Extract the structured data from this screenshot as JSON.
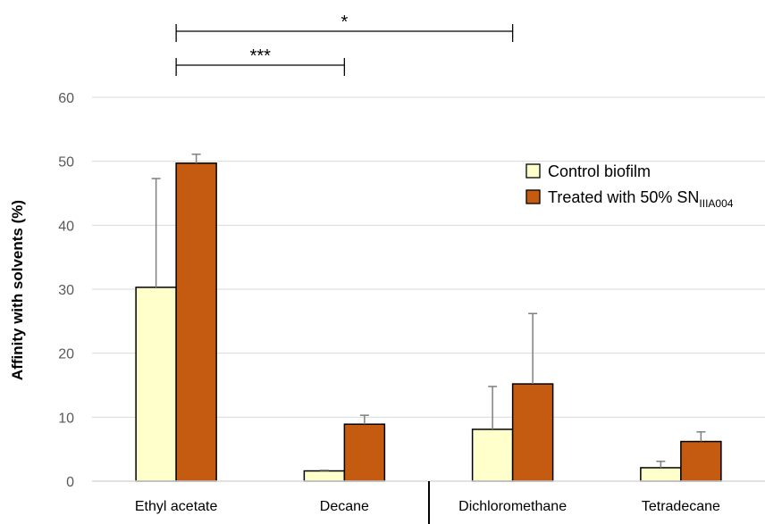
{
  "chart_data": {
    "type": "bar",
    "title": "",
    "xlabel": "",
    "ylabel": "Affinity with solvents (%)",
    "ylim": [
      0,
      60
    ],
    "yticks": [
      0,
      10,
      20,
      30,
      40,
      50,
      60
    ],
    "grid": true,
    "legend_position": "top-right",
    "categories": [
      "Ethyl acetate",
      "Decane",
      "Dichloromethane",
      "Tetradecane"
    ],
    "series": [
      {
        "name": "Control biofilm",
        "color": "#ffffcc",
        "values": [
          30.3,
          1.6,
          8.1,
          2.1
        ],
        "errors": [
          17.0,
          0.1,
          6.7,
          1.0
        ]
      },
      {
        "name": "Treated with 50% SN",
        "name_subscript": "IIIA004",
        "color": "#c55a11",
        "values": [
          49.7,
          8.9,
          15.2,
          6.2
        ],
        "errors": [
          1.4,
          1.4,
          11.0,
          1.5
        ]
      }
    ],
    "annotations": [
      {
        "label": "*",
        "from_category": "Ethyl acetate",
        "to_category": "Dichloromethane"
      },
      {
        "label": "***",
        "from_category": "Ethyl acetate",
        "to_category": "Decane"
      }
    ]
  }
}
